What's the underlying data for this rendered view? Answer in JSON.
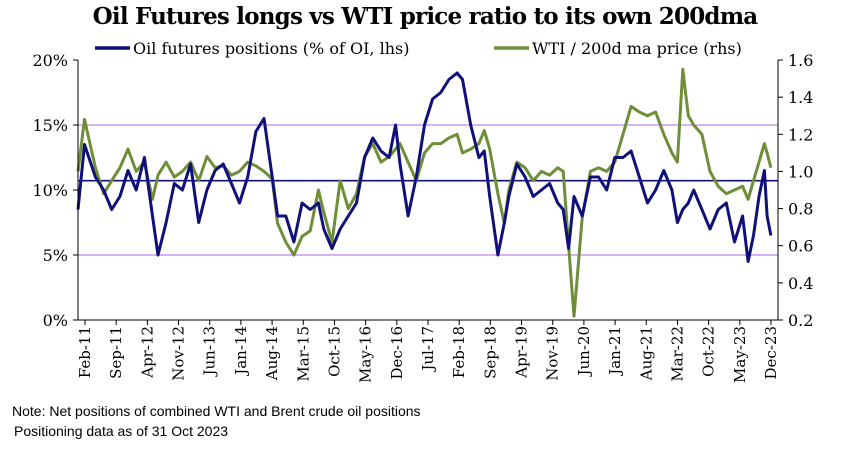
{
  "chart_data": {
    "type": "line",
    "title": "Oil Futures longs vs WTI price ratio to its own 200dma",
    "x_tick_labels": [
      "Feb-11",
      "Sep-11",
      "Apr-12",
      "Nov-12",
      "Jun-13",
      "Jan-14",
      "Aug-14",
      "Mar-15",
      "Oct-15",
      "May-16",
      "Dec-16",
      "Jul-17",
      "Feb-18",
      "Sep-18",
      "Apr-19",
      "Nov-19",
      "Jun-20",
      "Jan-21",
      "Aug-21",
      "Mar-22",
      "Oct-22",
      "May-23",
      "Dec-23"
    ],
    "y_left": {
      "ticks": [
        "0%",
        "5%",
        "10%",
        "15%",
        "20%"
      ],
      "ylim": [
        0,
        20
      ]
    },
    "y_right": {
      "ticks": [
        "0.2",
        "0.4",
        "0.6",
        "0.8",
        "1.0",
        "1.2",
        "1.4",
        "1.6"
      ],
      "ylim": [
        0.2,
        1.6
      ]
    },
    "reference_lines": [
      {
        "axis": "left",
        "value": 15,
        "color": "#cc99ee"
      },
      {
        "axis": "left",
        "value": 5,
        "color": "#cc99ee"
      },
      {
        "axis": "right",
        "value": 0.95,
        "color": "#10107a"
      }
    ],
    "series": [
      {
        "name": "Oil futures positions (% of OI, lhs)",
        "axis": "left",
        "color": "#10107a",
        "x": [
          2011.08,
          2011.2,
          2011.4,
          2011.55,
          2011.7,
          2011.85,
          2012.0,
          2012.15,
          2012.3,
          2012.45,
          2012.55,
          2012.7,
          2012.85,
          2013.0,
          2013.15,
          2013.3,
          2013.45,
          2013.6,
          2013.75,
          2013.9,
          2014.05,
          2014.2,
          2014.35,
          2014.5,
          2014.65,
          2014.75,
          2014.9,
          2015.05,
          2015.2,
          2015.35,
          2015.5,
          2015.6,
          2015.75,
          2015.9,
          2016.05,
          2016.2,
          2016.35,
          2016.5,
          2016.65,
          2016.8,
          2016.92,
          2017.0,
          2017.15,
          2017.3,
          2017.45,
          2017.6,
          2017.75,
          2017.9,
          2018.05,
          2018.15,
          2018.3,
          2018.45,
          2018.55,
          2018.65,
          2018.8,
          2018.92,
          2019.0,
          2019.15,
          2019.3,
          2019.45,
          2019.6,
          2019.75,
          2019.9,
          2020.0,
          2020.1,
          2020.2,
          2020.35,
          2020.5,
          2020.65,
          2020.8,
          2020.95,
          2021.1,
          2021.25,
          2021.4,
          2021.55,
          2021.7,
          2021.85,
          2022.0,
          2022.1,
          2022.2,
          2022.3,
          2022.4,
          2022.55,
          2022.7,
          2022.85,
          2023.0,
          2023.15,
          2023.3,
          2023.4,
          2023.5,
          2023.6,
          2023.7,
          2023.75,
          2023.82
        ],
        "values": [
          8.5,
          13.5,
          11.0,
          10.0,
          8.5,
          9.5,
          11.5,
          10.0,
          12.5,
          8.0,
          5.0,
          7.5,
          10.5,
          10.0,
          12.0,
          7.5,
          10.0,
          11.5,
          12.0,
          10.5,
          9.0,
          11.0,
          14.5,
          15.5,
          11.0,
          8.0,
          8.0,
          6.0,
          9.0,
          8.5,
          9.0,
          7.0,
          5.5,
          7.0,
          8.0,
          9.0,
          12.5,
          14.0,
          13.0,
          12.5,
          15.0,
          12.0,
          8.0,
          11.0,
          15.0,
          17.0,
          17.5,
          18.5,
          19.0,
          18.5,
          15.0,
          12.5,
          13.0,
          9.5,
          5.0,
          7.5,
          9.5,
          12.0,
          11.0,
          9.5,
          10.0,
          10.5,
          9.0,
          8.5,
          5.5,
          9.5,
          8.0,
          11.0,
          11.0,
          10.0,
          12.5,
          12.5,
          13.0,
          11.0,
          9.0,
          10.0,
          11.5,
          10.0,
          7.5,
          8.5,
          9.0,
          10.0,
          8.5,
          7.0,
          8.5,
          9.0,
          6.0,
          8.0,
          4.5,
          6.5,
          9.5,
          11.5,
          8.0,
          6.5
        ]
      },
      {
        "name": "WTI / 200d ma price (rhs)",
        "axis": "right",
        "color": "#6f8e3a",
        "x": [
          2011.08,
          2011.2,
          2011.4,
          2011.55,
          2011.7,
          2011.85,
          2012.0,
          2012.15,
          2012.3,
          2012.45,
          2012.55,
          2012.7,
          2012.85,
          2013.0,
          2013.15,
          2013.3,
          2013.45,
          2013.6,
          2013.75,
          2013.9,
          2014.05,
          2014.2,
          2014.35,
          2014.5,
          2014.65,
          2014.75,
          2014.9,
          2015.05,
          2015.2,
          2015.35,
          2015.5,
          2015.6,
          2015.75,
          2015.9,
          2016.05,
          2016.2,
          2016.35,
          2016.5,
          2016.65,
          2016.8,
          2016.92,
          2017.0,
          2017.15,
          2017.3,
          2017.45,
          2017.6,
          2017.75,
          2017.9,
          2018.05,
          2018.15,
          2018.3,
          2018.45,
          2018.55,
          2018.65,
          2018.8,
          2018.92,
          2019.0,
          2019.15,
          2019.3,
          2019.45,
          2019.6,
          2019.75,
          2019.9,
          2020.0,
          2020.1,
          2020.2,
          2020.35,
          2020.5,
          2020.65,
          2020.8,
          2020.95,
          2021.1,
          2021.25,
          2021.4,
          2021.55,
          2021.7,
          2021.85,
          2022.0,
          2022.1,
          2022.2,
          2022.3,
          2022.4,
          2022.55,
          2022.7,
          2022.85,
          2023.0,
          2023.15,
          2023.3,
          2023.4,
          2023.5,
          2023.6,
          2023.7,
          2023.75,
          2023.82
        ],
        "values": [
          1.0,
          1.28,
          1.02,
          0.88,
          0.95,
          1.02,
          1.12,
          1.0,
          1.05,
          0.85,
          0.98,
          1.05,
          0.97,
          1.0,
          1.05,
          0.95,
          1.08,
          1.02,
          1.03,
          0.98,
          1.0,
          1.05,
          1.03,
          1.0,
          0.96,
          0.72,
          0.62,
          0.55,
          0.65,
          0.68,
          0.9,
          0.78,
          0.62,
          0.95,
          0.8,
          0.88,
          1.08,
          1.15,
          1.05,
          1.08,
          1.12,
          1.15,
          1.05,
          0.95,
          1.1,
          1.15,
          1.15,
          1.18,
          1.2,
          1.1,
          1.12,
          1.15,
          1.22,
          1.12,
          0.88,
          0.72,
          0.9,
          1.05,
          1.02,
          0.95,
          1.0,
          0.98,
          1.02,
          1.0,
          0.6,
          0.22,
          0.75,
          1.0,
          1.02,
          1.0,
          1.05,
          1.2,
          1.35,
          1.32,
          1.3,
          1.32,
          1.2,
          1.1,
          1.05,
          1.55,
          1.3,
          1.25,
          1.2,
          1.0,
          0.92,
          0.88,
          0.9,
          0.92,
          0.85,
          0.95,
          1.05,
          1.15,
          1.1,
          1.02
        ]
      }
    ],
    "notes": [
      "Note: Net positions of combined WTI and Brent crude oil positions",
      "Positioning data as of 31 Oct 2023"
    ]
  }
}
